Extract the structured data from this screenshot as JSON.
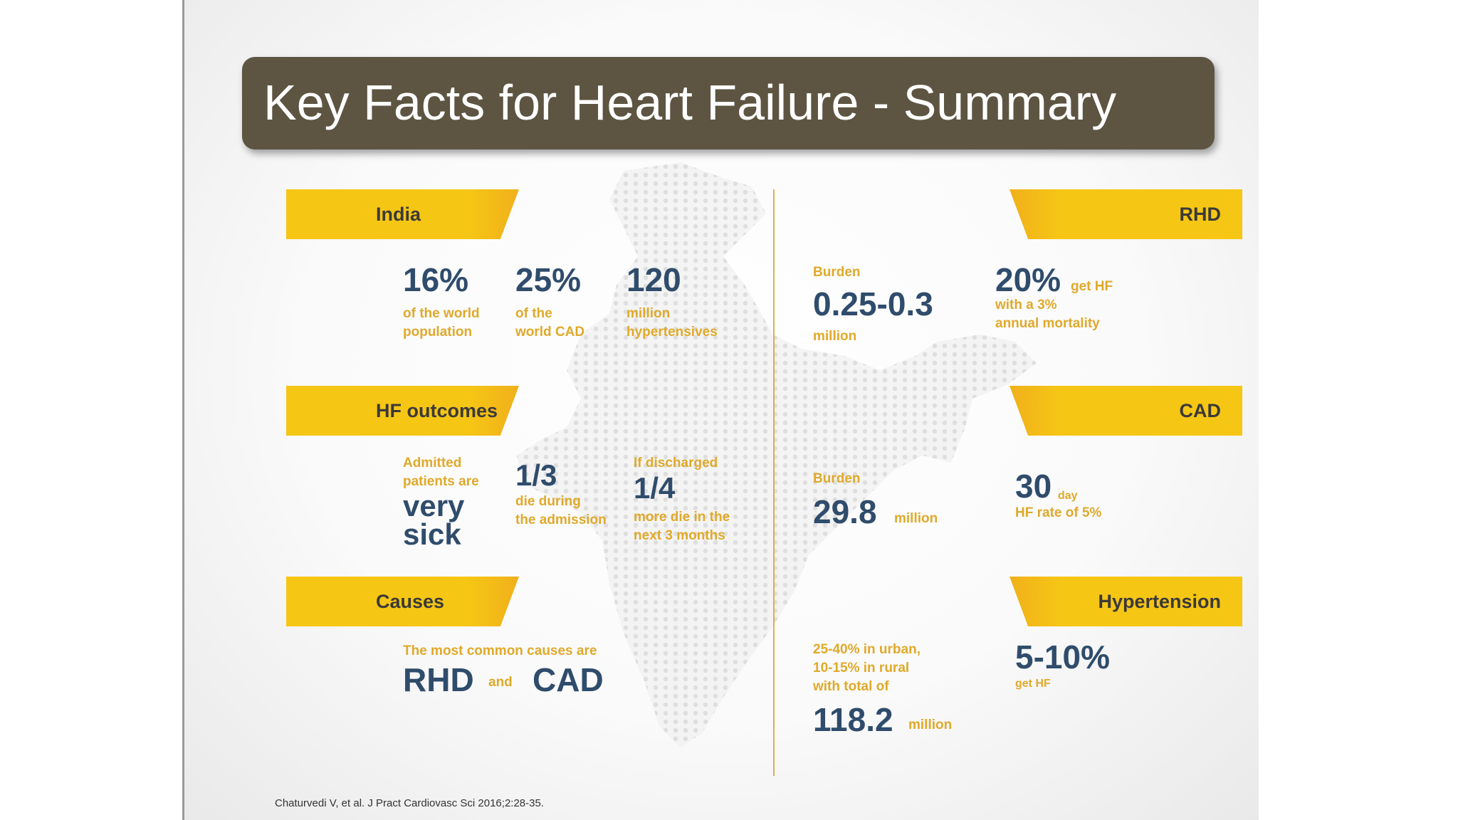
{
  "title": "Key Facts for Heart Failure - Summary",
  "left": {
    "india": {
      "banner": "India",
      "stats": [
        {
          "value": "16%",
          "line1": "of the world",
          "line2": "population"
        },
        {
          "value": "25%",
          "line1": "of the",
          "line2": "world CAD"
        },
        {
          "value": "120",
          "line1": "million",
          "line2": "hypertensives"
        }
      ]
    },
    "hf_outcomes": {
      "banner": "HF outcomes",
      "intro_line1": "Admitted",
      "intro_line2": "patients are",
      "emphasis_line1": "very",
      "emphasis_line2": "sick",
      "fraction1": {
        "value": "1/3",
        "line1": "die during",
        "line2": "the admission"
      },
      "fraction2": {
        "pre": "If discharged",
        "value": "1/4",
        "line1": "more die in the",
        "line2": "next 3 months"
      }
    },
    "causes": {
      "banner": "Causes",
      "intro": "The most common causes are",
      "cause1": "RHD",
      "connector": "and",
      "cause2": "CAD"
    }
  },
  "center": {
    "rhd_burden": {
      "label": "Burden",
      "value": "0.25-0.3",
      "unit": "million"
    },
    "cad_burden": {
      "label": "Burden",
      "value": "29.8",
      "unit": "million"
    },
    "htn_burden": {
      "line1": "25-40% in urban,",
      "line2": "10-15% in rural",
      "line3": "with total of",
      "value": "118.2",
      "unit": "million"
    }
  },
  "right": {
    "rhd": {
      "banner": "RHD",
      "value": "20%",
      "suffix": "get HF",
      "line1": "with a 3%",
      "line2": "annual mortality"
    },
    "cad": {
      "banner": "CAD",
      "value": "30",
      "suffix": "day",
      "line1": "HF rate of 5%"
    },
    "hypertension": {
      "banner": "Hypertension",
      "value": "5-10%",
      "line1": "get HF"
    }
  },
  "citation": "Chaturvedi V, et al. J Pract Cardiovasc Sci 2016;2:28-35.",
  "colors": {
    "title_bar": "#5d5442",
    "banner_yellow": "#f6c615",
    "value_blue": "#2f4c6c",
    "label_gold": "#e0a92a"
  }
}
